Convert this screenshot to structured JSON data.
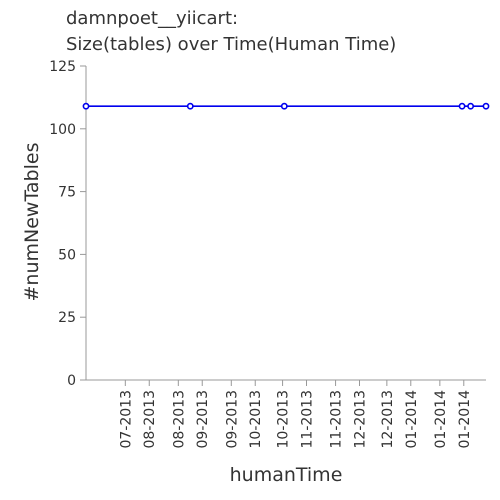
{
  "chart_data": {
    "type": "line",
    "title_line1": "damnpoet__yiicart:",
    "title_line2": "Size(tables) over Time(Human Time)",
    "xlabel": "humanTime",
    "ylabel": "#numNewTables",
    "ylim": [
      0,
      125
    ],
    "yticks": [
      0,
      25,
      50,
      75,
      100,
      125
    ],
    "xlim": [
      "2013-06-08",
      "2014-01-28"
    ],
    "xticks": [
      {
        "date": "2013-07-01",
        "label": "07-2013"
      },
      {
        "date": "2013-07-15",
        "label": "08-2013"
      },
      {
        "date": "2013-08-01",
        "label": "08-2013"
      },
      {
        "date": "2013-08-15",
        "label": "09-2013"
      },
      {
        "date": "2013-09-01",
        "label": "09-2013"
      },
      {
        "date": "2013-09-15",
        "label": "10-2013"
      },
      {
        "date": "2013-10-01",
        "label": "10-2013"
      },
      {
        "date": "2013-10-15",
        "label": "11-2013"
      },
      {
        "date": "2013-11-01",
        "label": "11-2013"
      },
      {
        "date": "2013-11-15",
        "label": "12-2013"
      },
      {
        "date": "2013-12-01",
        "label": "12-2013"
      },
      {
        "date": "2013-12-15",
        "label": "01-2014"
      },
      {
        "date": "2014-01-01",
        "label": "01-2014"
      },
      {
        "date": "2014-01-15",
        "label": "01-2014"
      }
    ],
    "series": [
      {
        "color": "#0000ee",
        "points": [
          {
            "x": "2013-06-08",
            "y": 109
          },
          {
            "x": "2013-08-08",
            "y": 109
          },
          {
            "x": "2013-10-02",
            "y": 109
          },
          {
            "x": "2014-01-14",
            "y": 109
          },
          {
            "x": "2014-01-19",
            "y": 109
          },
          {
            "x": "2014-01-28",
            "y": 109
          }
        ]
      }
    ],
    "grid": false
  }
}
